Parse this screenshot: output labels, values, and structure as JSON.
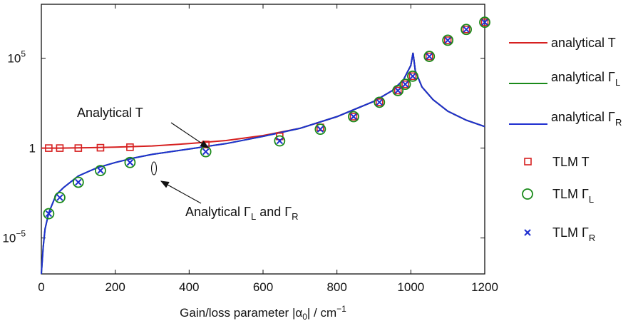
{
  "chart_data": {
    "type": "line",
    "xlabel": "Gain/loss parameter |α0| / cm−1",
    "xlabel_parts": {
      "pre": "Gain/loss parameter |α",
      "sub": "0",
      "mid": "| / cm",
      "sup": "−1"
    },
    "ylabel": "",
    "xlim": [
      0,
      1200
    ],
    "ylim_log10": [
      -7,
      8
    ],
    "y_scale": "log",
    "grid": false,
    "legend_position": "outside-right",
    "x_ticks": [
      "0",
      "200",
      "400",
      "600",
      "800",
      "1000",
      "1200"
    ],
    "y_ticks": [
      {
        "log10": -5,
        "base": "10",
        "exp": "−5"
      },
      {
        "log10": 0,
        "base": "1",
        "exp": ""
      },
      {
        "log10": 5,
        "base": "10",
        "exp": "5"
      }
    ],
    "series": [
      {
        "name": "analytical T",
        "kind": "line",
        "color": "#d62020",
        "x": [
          0,
          50,
          100,
          200,
          300,
          400,
          500,
          600,
          700,
          800,
          900,
          950,
          980,
          1000,
          1006,
          1012,
          1030,
          1060,
          1100,
          1150,
          1200
        ],
        "log10": [
          0.0,
          0.0,
          0.01,
          0.05,
          0.12,
          0.25,
          0.42,
          0.7,
          1.1,
          1.75,
          2.6,
          3.2,
          3.8,
          4.6,
          5.3,
          4.3,
          3.4,
          2.7,
          2.05,
          1.55,
          1.2
        ]
      },
      {
        "name": "analytical ΓL",
        "label_base": "analytical Γ",
        "label_sub": "L",
        "kind": "line",
        "color": "#1a8a1a",
        "x": [
          0,
          5,
          10,
          20,
          40,
          60,
          100,
          150,
          200,
          250,
          300,
          400,
          500,
          600,
          700,
          800,
          900,
          950,
          980,
          1000,
          1006,
          1012,
          1030,
          1060,
          1100,
          1150,
          1200
        ],
        "log10": [
          -7,
          -5.5,
          -4.5,
          -3.6,
          -2.6,
          -2.2,
          -1.55,
          -1.1,
          -0.8,
          -0.55,
          -0.35,
          -0.05,
          0.25,
          0.65,
          1.1,
          1.75,
          2.6,
          3.2,
          3.8,
          4.6,
          5.3,
          4.3,
          3.4,
          2.7,
          2.05,
          1.55,
          1.2
        ]
      },
      {
        "name": "analytical ΓR",
        "label_base": "analytical Γ",
        "label_sub": "R",
        "kind": "line",
        "color": "#1f2fd0",
        "x": [
          0,
          5,
          10,
          20,
          40,
          60,
          100,
          150,
          200,
          250,
          300,
          400,
          500,
          600,
          700,
          800,
          900,
          950,
          980,
          1000,
          1006,
          1012,
          1030,
          1060,
          1100,
          1150,
          1200
        ],
        "log10": [
          -7,
          -5.5,
          -4.5,
          -3.6,
          -2.6,
          -2.2,
          -1.55,
          -1.1,
          -0.8,
          -0.55,
          -0.35,
          -0.05,
          0.25,
          0.65,
          1.1,
          1.75,
          2.6,
          3.2,
          3.8,
          4.6,
          5.3,
          4.3,
          3.4,
          2.7,
          2.05,
          1.55,
          1.2
        ]
      },
      {
        "name": "TLM T",
        "kind": "square",
        "color": "#d62020",
        "x": [
          20,
          50,
          100,
          160,
          240,
          445,
          645,
          755,
          845,
          915,
          965,
          985,
          1005,
          1050,
          1100,
          1150,
          1200
        ],
        "log10": [
          0.0,
          0.0,
          0.0,
          0.02,
          0.05,
          0.2,
          0.65,
          1.15,
          1.75,
          2.55,
          3.2,
          3.55,
          4.0,
          5.1,
          6.0,
          6.6,
          7.0
        ]
      },
      {
        "name": "TLM ΓL",
        "label_base": "TLM Γ",
        "label_sub": "L",
        "kind": "circle",
        "color": "#1a8a1a",
        "x": [
          20,
          50,
          100,
          160,
          240,
          445,
          645,
          755,
          845,
          915,
          965,
          985,
          1005,
          1050,
          1100,
          1150,
          1200
        ],
        "log10": [
          -3.65,
          -2.75,
          -1.9,
          -1.25,
          -0.8,
          -0.2,
          0.4,
          1.05,
          1.75,
          2.55,
          3.2,
          3.55,
          4.0,
          5.1,
          6.0,
          6.6,
          7.0
        ]
      },
      {
        "name": "TLM ΓR",
        "label_base": "TLM Γ",
        "label_sub": "R",
        "kind": "cross",
        "color": "#1f2fd0",
        "x": [
          20,
          50,
          100,
          160,
          240,
          445,
          645,
          755,
          845,
          915,
          965,
          985,
          1005,
          1050,
          1100,
          1150,
          1200
        ],
        "log10": [
          -3.65,
          -2.75,
          -1.9,
          -1.25,
          -0.8,
          -0.2,
          0.4,
          1.05,
          1.75,
          2.55,
          3.2,
          3.55,
          4.0,
          5.1,
          6.0,
          6.6,
          7.0
        ]
      }
    ],
    "annotations": [
      {
        "id": "analytical-t",
        "text": "Analytical T",
        "points_to": {
          "x": 240,
          "log10": 0.45
        }
      },
      {
        "id": "analytical-gamma",
        "text_pre": "Analytical Γ",
        "sub1": "L",
        "text_mid": " and Γ",
        "sub2": "R",
        "points_to": {
          "x": 320,
          "log10": -1.6
        }
      }
    ]
  }
}
